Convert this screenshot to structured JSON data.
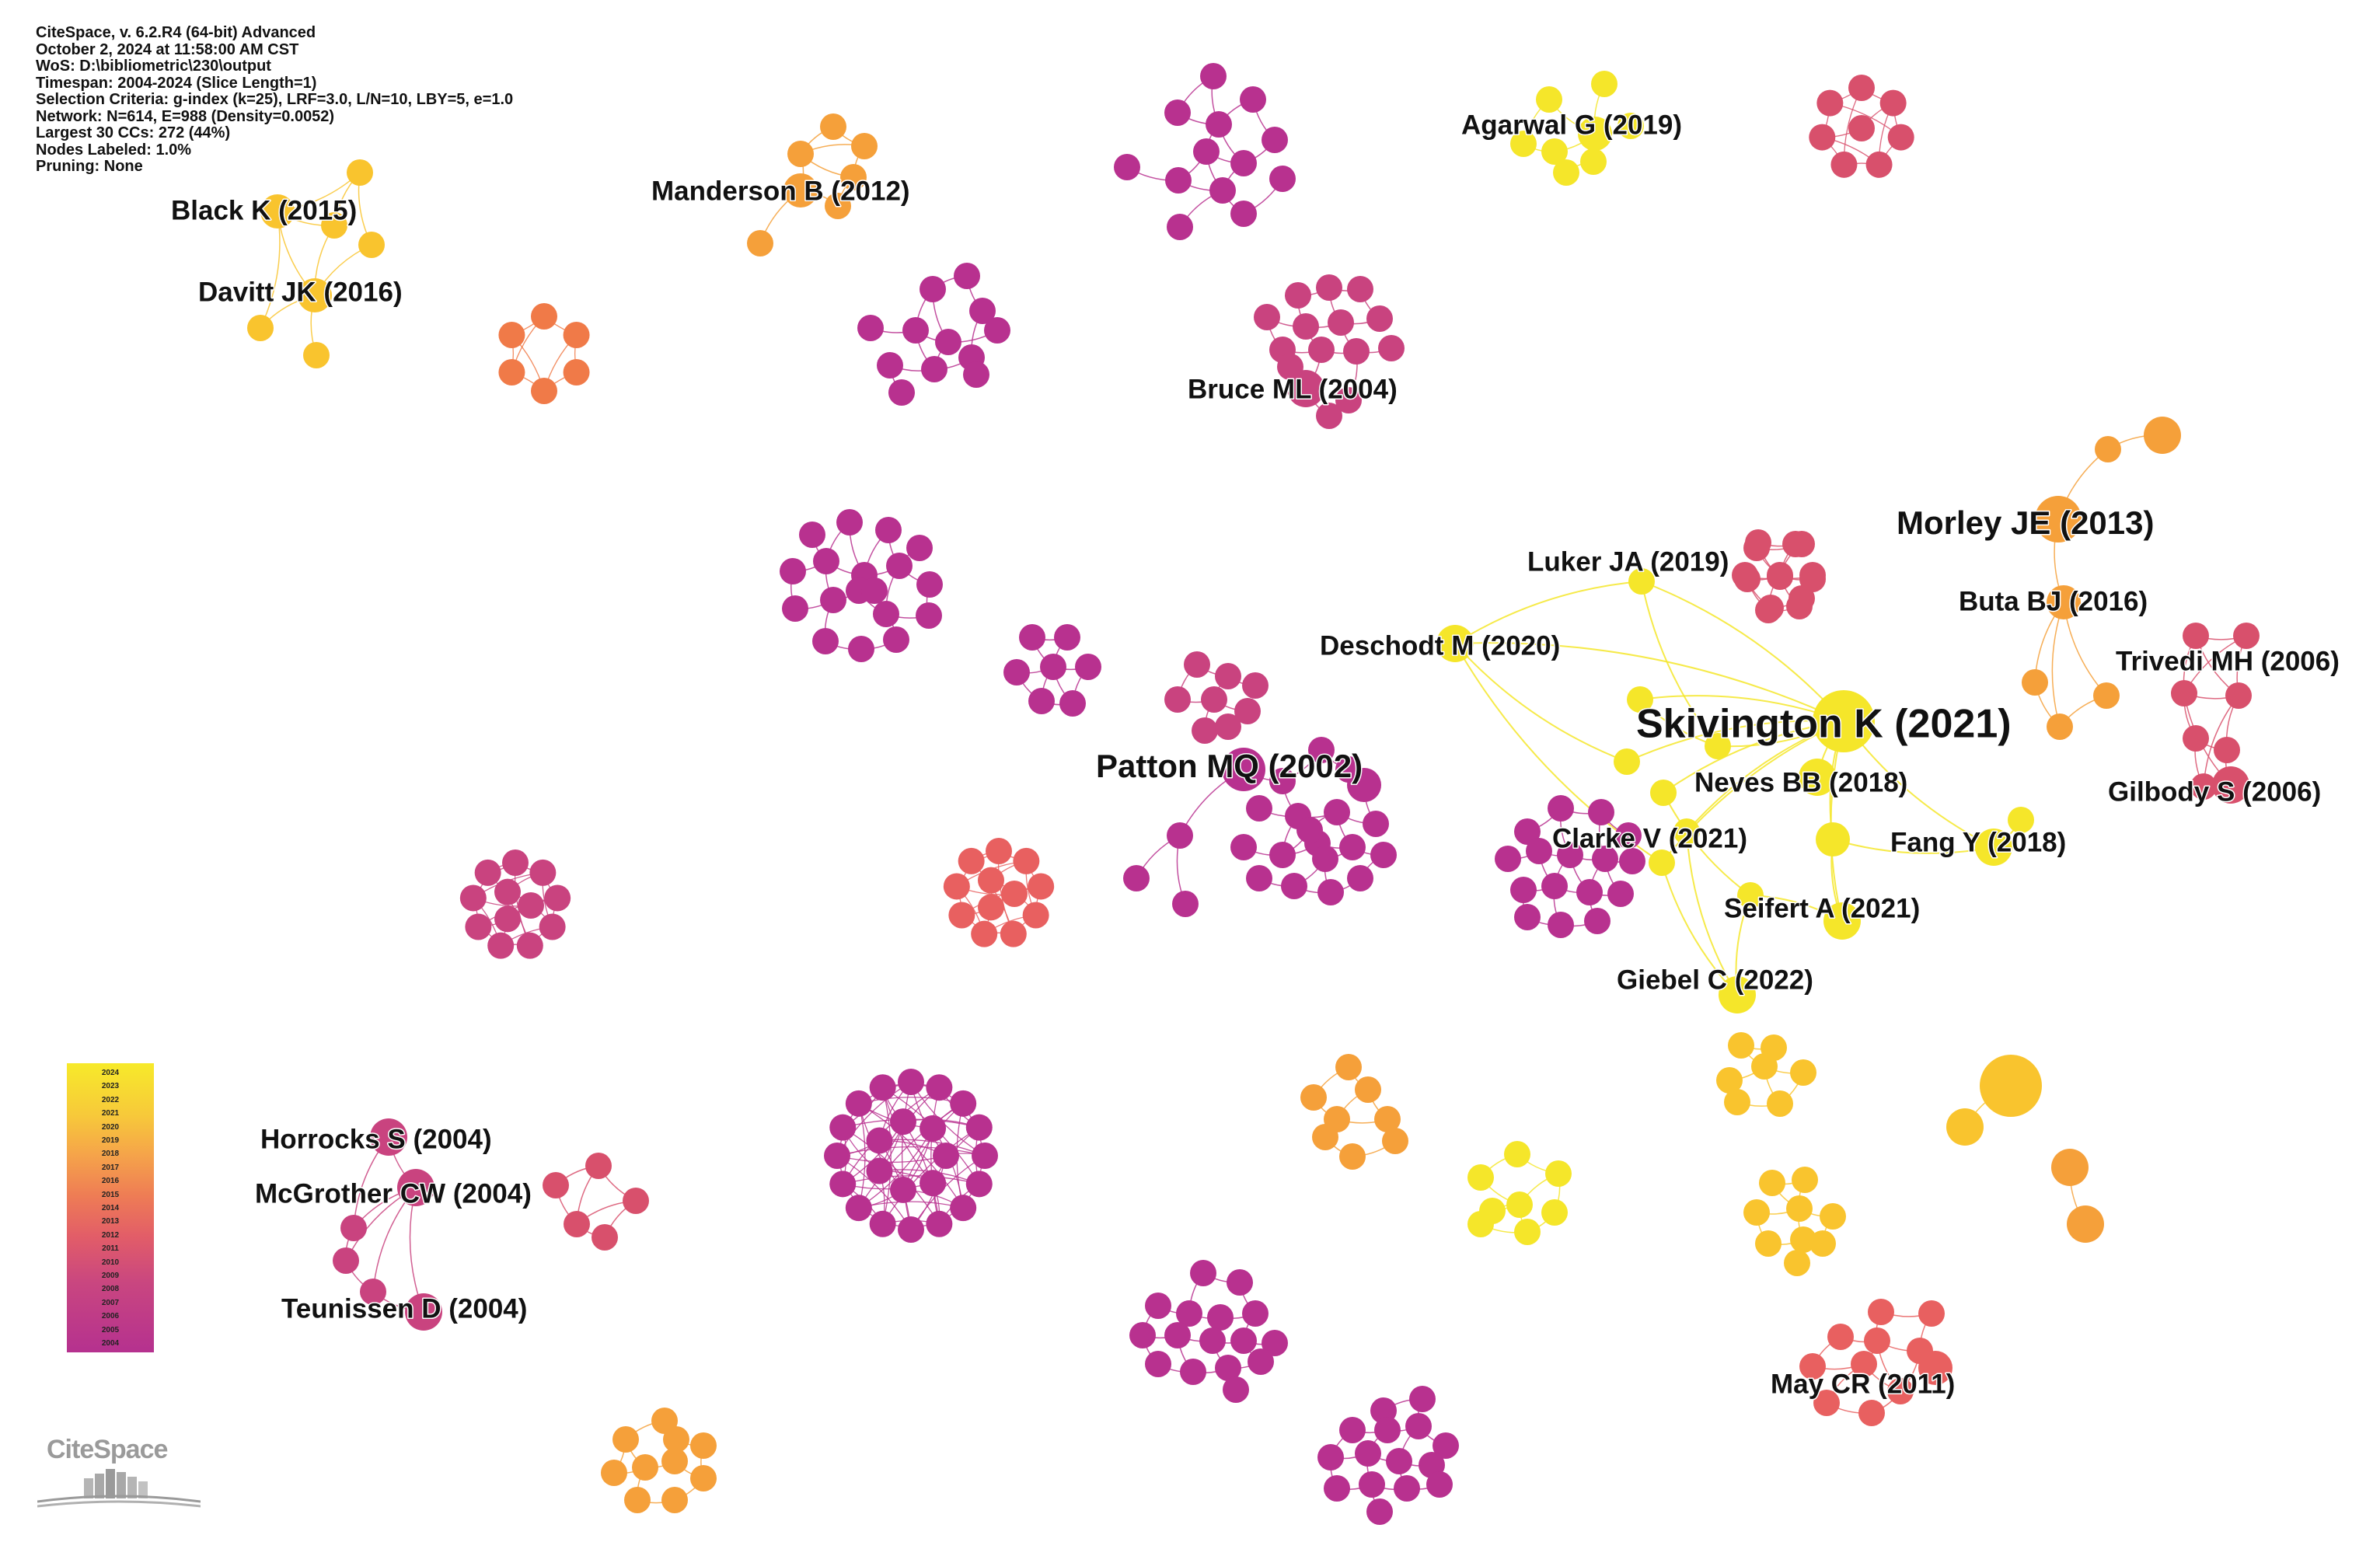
{
  "info_lines": [
    "CiteSpace, v. 6.2.R4 (64-bit) Advanced",
    "October 2, 2024 at 11:58:00 AM CST",
    "WoS: D:\\bibliometric\\230\\output",
    "Timespan: 2004-2024 (Slice Length=1)",
    "Selection Criteria: g-index (k=25), LRF=3.0, L/N=10, LBY=5, e=1.0",
    "Network: N=614, E=988 (Density=0.0052)",
    "Largest 30 CCs: 272 (44%)",
    "Nodes Labeled: 1.0%",
    "Pruning: None"
  ],
  "legend": {
    "years": [
      "2024",
      "2023",
      "2022",
      "2021",
      "2020",
      "2019",
      "2018",
      "2017",
      "2016",
      "2015",
      "2014",
      "2013",
      "2012",
      "2011",
      "2010",
      "2009",
      "2008",
      "2007",
      "2006",
      "2005",
      "2004"
    ]
  },
  "colors": {
    "c2004": "#b8318f",
    "c2006": "#c9437f",
    "c2008": "#d8506c",
    "c2011": "#e86060",
    "c2013": "#f07a48",
    "c2016": "#f5a03a",
    "c2019": "#f9c42e",
    "c2022": "#f5e62a"
  },
  "labels": [
    {
      "text": "Skivington K (2021)",
      "size": "xl"
    },
    {
      "text": "Patton MQ (2002)",
      "size": "l"
    },
    {
      "text": "Morley JE (2013)",
      "size": "l"
    },
    {
      "text": "Black K (2015)",
      "size": "m"
    },
    {
      "text": "Davitt JK (2016)",
      "size": "m"
    },
    {
      "text": "Manderson B (2012)",
      "size": "m"
    },
    {
      "text": "Agarwal G (2019)",
      "size": "m"
    },
    {
      "text": "Bruce ML (2004)",
      "size": "m"
    },
    {
      "text": "Luker JA (2019)",
      "size": "m"
    },
    {
      "text": "Deschodt M (2020)",
      "size": "m"
    },
    {
      "text": "Buta BJ (2016)",
      "size": "m"
    },
    {
      "text": "Trivedi MH (2006)",
      "size": "m"
    },
    {
      "text": "Gilbody S (2006)",
      "size": "m"
    },
    {
      "text": "Neves BB (2018)",
      "size": "m"
    },
    {
      "text": "Clarke V (2021)",
      "size": "m"
    },
    {
      "text": "Fang Y (2018)",
      "size": "m"
    },
    {
      "text": "Seifert A (2021)",
      "size": "m"
    },
    {
      "text": "Giebel C (2022)",
      "size": "m"
    },
    {
      "text": "Horrocks S (2004)",
      "size": "m"
    },
    {
      "text": "McGrother CW (2004)",
      "size": "m"
    },
    {
      "text": "Teunissen D (2004)",
      "size": "m"
    },
    {
      "text": "May CR (2011)",
      "size": "m"
    }
  ],
  "logo": {
    "text": "CiteSpace"
  }
}
